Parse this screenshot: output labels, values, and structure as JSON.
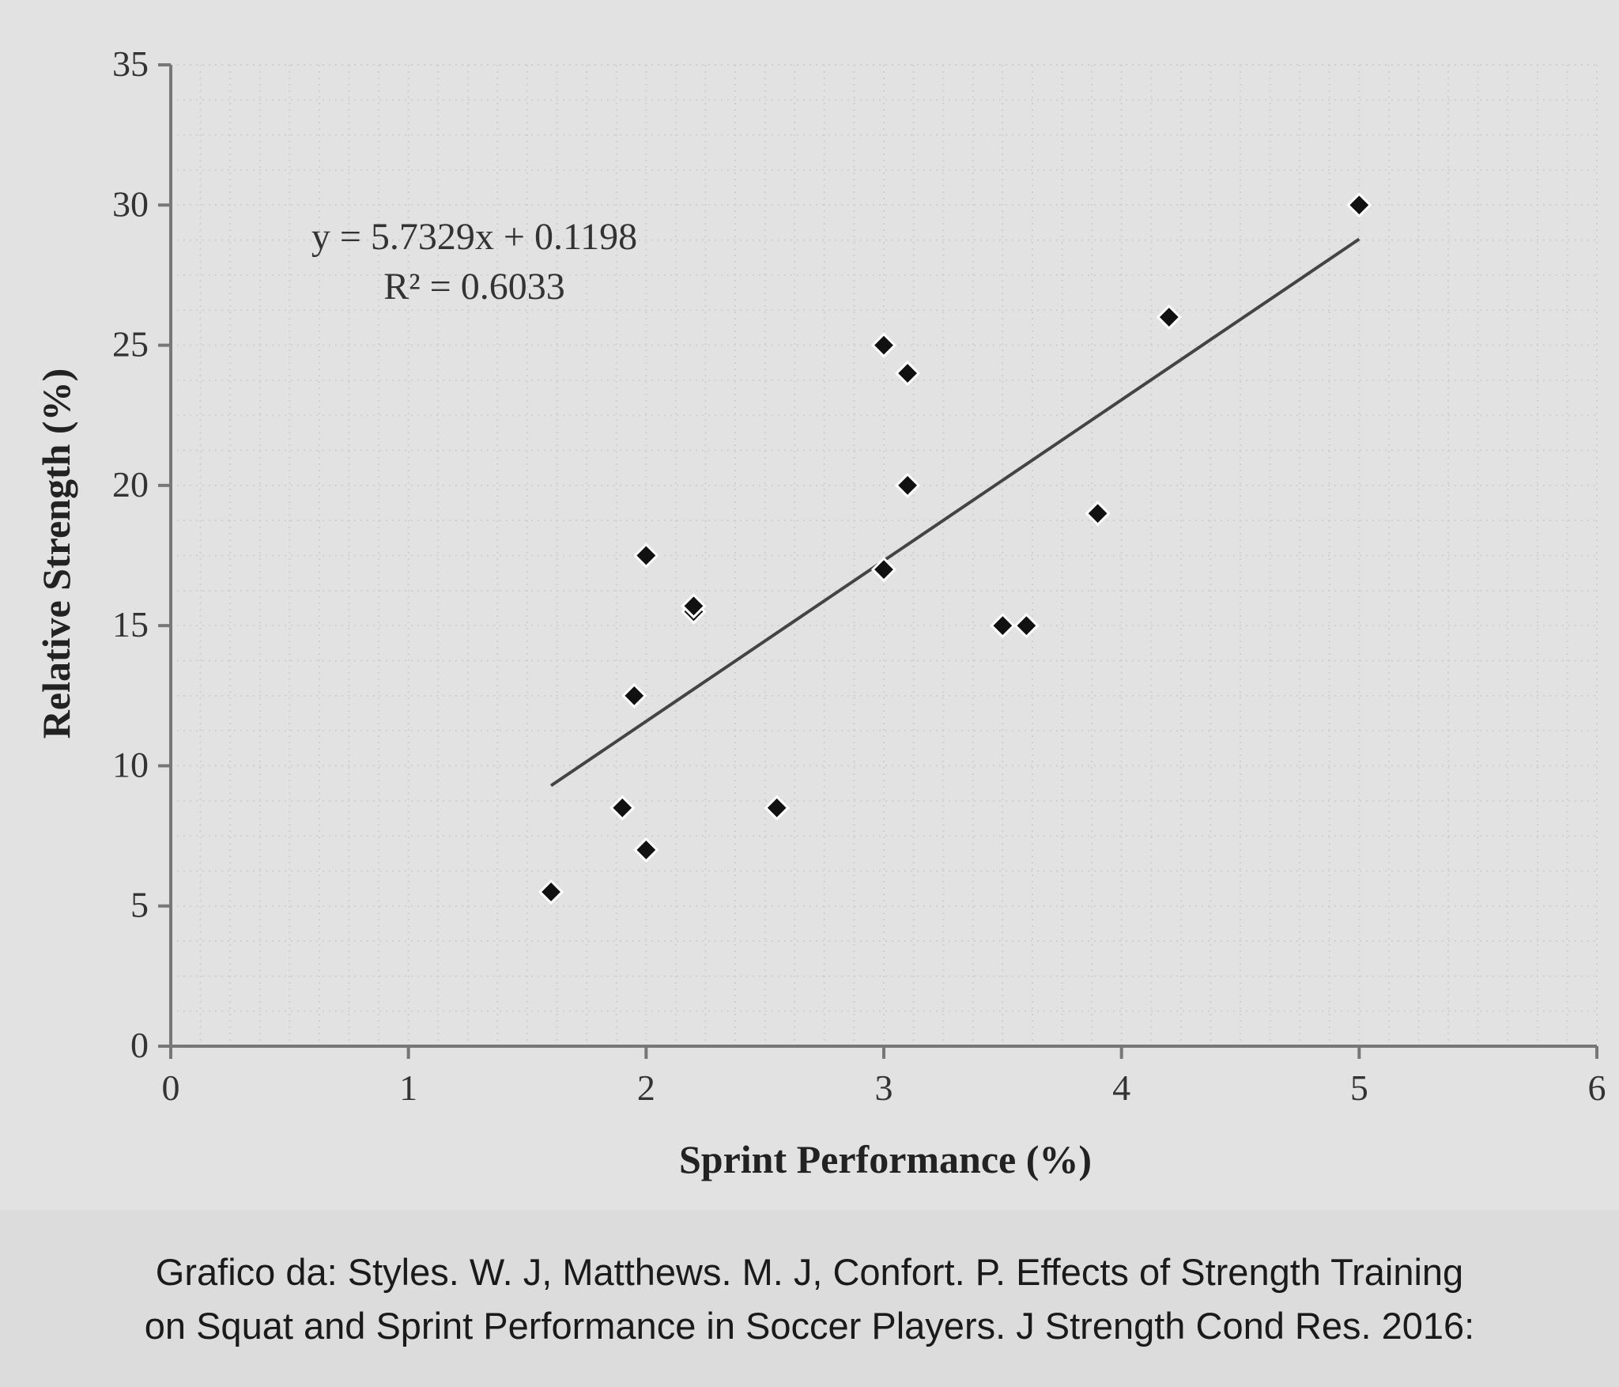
{
  "chart_data": {
    "type": "scatter",
    "title": "",
    "xlabel": "Sprint Performance (%)",
    "ylabel": "Relative Strength (%)",
    "xlim": [
      0,
      6
    ],
    "ylim": [
      0,
      35
    ],
    "xticks": [
      "0",
      "1",
      "2",
      "3",
      "4",
      "5",
      "6"
    ],
    "yticks": [
      "0",
      "5",
      "10",
      "15",
      "20",
      "25",
      "30",
      "35"
    ],
    "points": [
      {
        "x": 1.6,
        "y": 5.5
      },
      {
        "x": 1.9,
        "y": 8.5
      },
      {
        "x": 1.95,
        "y": 12.5
      },
      {
        "x": 2.0,
        "y": 7.0
      },
      {
        "x": 2.0,
        "y": 17.5
      },
      {
        "x": 2.2,
        "y": 15.5
      },
      {
        "x": 2.2,
        "y": 15.7
      },
      {
        "x": 2.55,
        "y": 8.5
      },
      {
        "x": 3.0,
        "y": 17.0
      },
      {
        "x": 3.0,
        "y": 25.0
      },
      {
        "x": 3.1,
        "y": 24.0
      },
      {
        "x": 3.1,
        "y": 20.0
      },
      {
        "x": 3.5,
        "y": 15.0
      },
      {
        "x": 3.6,
        "y": 15.0
      },
      {
        "x": 3.9,
        "y": 19.0
      },
      {
        "x": 4.2,
        "y": 26.0
      },
      {
        "x": 5.0,
        "y": 30.0
      }
    ],
    "trendline": {
      "slope": 5.7329,
      "intercept": 0.1198,
      "x_range": [
        1.6,
        5.0
      ],
      "equation": "y = 5.7329x + 0.1198",
      "r_squared": "R² = 0.6033"
    },
    "grid": true,
    "legend": "none"
  },
  "caption": {
    "line1": "Grafico  da: Styles. W. J, Matthews. M. J, Confort. P. Effects of Strength Training",
    "line2": "on Squat and Sprint Performance in Soccer Players. J Strength Cond Res. 2016:"
  },
  "colors": {
    "marker": "#111111",
    "axis": "#777777",
    "grid": "#cfcfcf",
    "trend": "#444444"
  }
}
